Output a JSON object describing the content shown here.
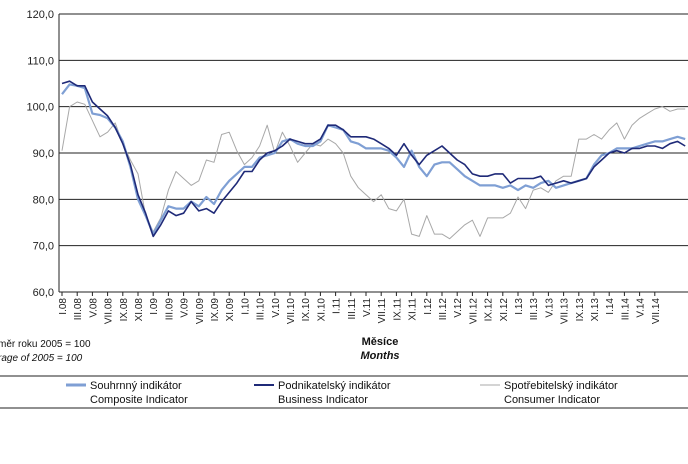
{
  "chart_data": {
    "type": "line",
    "title": "",
    "xlabel": "Měsíce",
    "xlabel_en": "Months",
    "ylabel": "",
    "ylim": [
      60,
      120
    ],
    "y_ticks": [
      "60,0",
      "70,0",
      "80,0",
      "90,0",
      "100,0",
      "110,0",
      "120,0"
    ],
    "note_cz": "měr roku 2005 = 100",
    "note_en": "rage of 2005 = 100",
    "grid": true,
    "legend_position": "bottom",
    "x_tick_labels": [
      "I.08",
      "III.08",
      "V.08",
      "VII.08",
      "IX.08",
      "XI.08",
      "I.09",
      "III.09",
      "V.09",
      "VII.09",
      "IX.09",
      "XI.09",
      "I.10",
      "III.10",
      "V.10",
      "VII.10",
      "IX.10",
      "XI.10",
      "I.11",
      "III.11",
      "V.11",
      "VII.11",
      "IX.11",
      "XI.11",
      "I.12",
      "III.12",
      "V.12",
      "VII.12",
      "IX.12",
      "XI.12",
      "I.13",
      "III.13",
      "V.13",
      "VII.13",
      "IX.13",
      "XI.13",
      "I.14",
      "III.14",
      "V.14",
      "VII.14"
    ],
    "series": [
      {
        "name": "Souhrnný indikátor",
        "name_en": "Composite Indicator",
        "color": "#7f9fd4",
        "values": [
          102.7,
          104.8,
          104.5,
          104.0,
          98.5,
          98.2,
          97.5,
          95.5,
          92.5,
          87.0,
          80.0,
          76.5,
          72.5,
          75.5,
          78.5,
          78.0,
          78.0,
          79.5,
          78.5,
          80.5,
          79.0,
          82.0,
          84.0,
          85.5,
          87.0,
          87.0,
          89.0,
          89.5,
          90.0,
          92.5,
          93.0,
          92.0,
          91.5,
          91.5,
          92.5,
          96.0,
          95.5,
          95.0,
          92.5,
          92.0,
          91.0,
          91.0,
          91.0,
          90.5,
          89.0,
          87.0,
          90.5,
          87.0,
          85.0,
          87.5,
          88.0,
          88.0,
          86.5,
          85.0,
          84.0,
          83.0,
          83.0,
          83.0,
          82.5,
          83.0,
          82.0,
          83.0,
          82.5,
          83.5,
          84.0,
          82.5,
          83.0,
          83.5,
          84.0,
          84.5,
          87.5,
          89.5,
          90.0,
          91.0,
          91.0,
          91.0,
          91.5,
          92.0,
          92.5,
          92.5,
          93.0,
          93.5,
          93.0
        ]
      },
      {
        "name": "Podnikatelský indikátor",
        "name_en": "Business Indicator",
        "color": "#1f2a78",
        "values": [
          105.0,
          105.5,
          104.5,
          104.5,
          101.0,
          99.5,
          98.0,
          95.5,
          92.0,
          87.5,
          81.0,
          77.0,
          72.0,
          74.5,
          77.5,
          76.5,
          77.0,
          79.5,
          77.5,
          78.0,
          77.0,
          79.5,
          81.5,
          83.5,
          86.0,
          86.0,
          88.5,
          90.0,
          90.5,
          91.5,
          93.0,
          92.5,
          92.0,
          92.0,
          93.0,
          96.0,
          96.0,
          95.0,
          93.5,
          93.5,
          93.5,
          93.0,
          92.0,
          91.0,
          89.5,
          92.0,
          89.5,
          87.5,
          89.5,
          90.5,
          91.5,
          90.0,
          88.5,
          87.5,
          85.5,
          85.0,
          85.0,
          85.5,
          85.5,
          83.5,
          84.5,
          84.5,
          84.5,
          85.0,
          83.0,
          83.5,
          84.0,
          83.5,
          84.0,
          84.5,
          87.0,
          88.5,
          90.0,
          90.5,
          90.0,
          91.0,
          91.0,
          91.5,
          91.5,
          91.0,
          92.0,
          92.5,
          91.5
        ]
      },
      {
        "name": "Spotřebitelský indikátor",
        "name_en": "Consumer Indicator",
        "color": "#a8a8a8",
        "values": [
          90.5,
          100.0,
          101.0,
          100.5,
          97.0,
          93.5,
          94.5,
          96.5,
          92.0,
          88.5,
          85.5,
          76.5,
          73.0,
          76.0,
          82.0,
          86.0,
          84.5,
          83.0,
          84.0,
          88.5,
          88.0,
          94.0,
          94.5,
          90.5,
          87.5,
          89.0,
          91.5,
          96.0,
          90.0,
          94.5,
          91.5,
          88.0,
          90.0,
          92.0,
          91.5,
          93.0,
          92.0,
          90.0,
          85.0,
          82.5,
          81.0,
          79.5,
          81.0,
          78.0,
          77.5,
          80.0,
          72.5,
          72.0,
          76.5,
          72.5,
          72.5,
          71.5,
          73.0,
          74.5,
          75.5,
          72.0,
          76.0,
          76.0,
          76.0,
          77.0,
          80.5,
          78.0,
          82.0,
          82.5,
          81.5,
          84.0,
          85.0,
          85.0,
          93.0,
          93.0,
          94.0,
          93.0,
          95.0,
          96.5,
          93.0,
          96.0,
          97.5,
          98.5,
          99.5,
          100.0,
          99.0,
          99.5,
          99.5
        ]
      }
    ]
  }
}
